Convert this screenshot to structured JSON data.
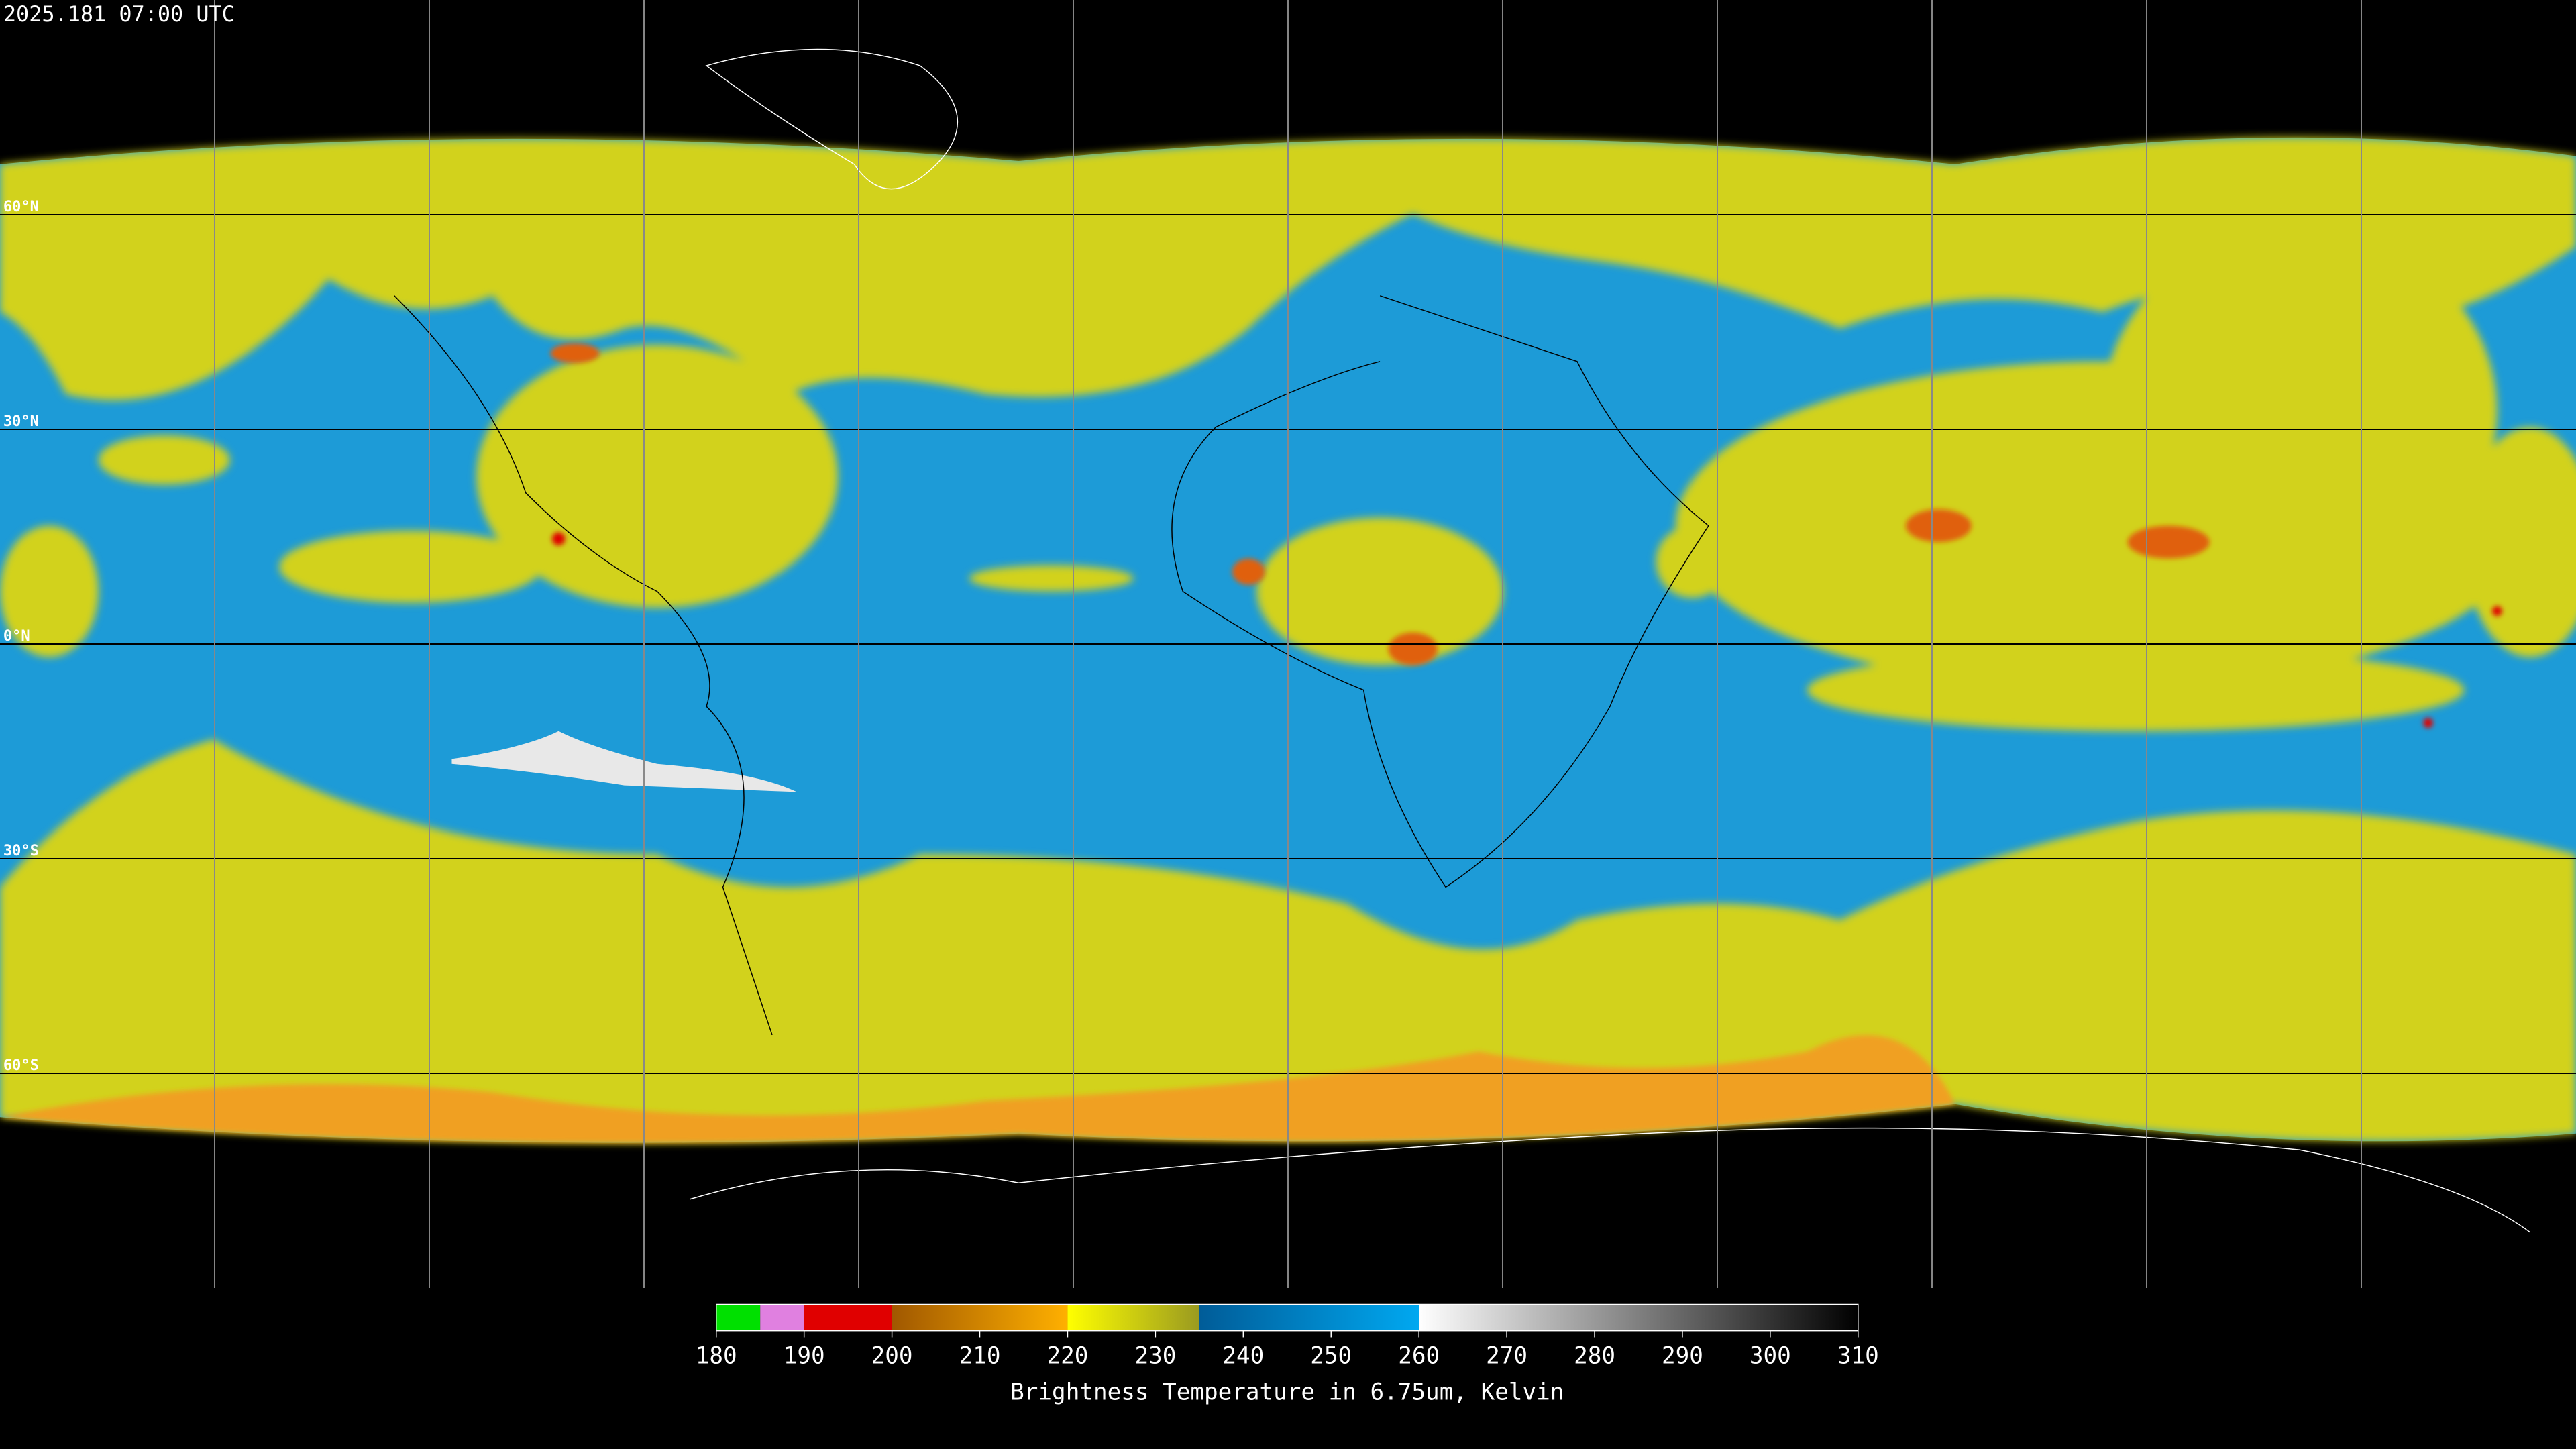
{
  "header": {
    "timestamp": "2025.181 07:00 UTC"
  },
  "map": {
    "latitude_labels": [
      "60°N",
      "30°N",
      "0°N",
      "30°S",
      "60°S"
    ],
    "colorbar": {
      "range": [
        180,
        310
      ],
      "ticks": [
        180,
        190,
        200,
        210,
        220,
        230,
        240,
        250,
        260,
        270,
        280,
        290,
        300,
        310
      ],
      "label": "Brightness Temperature in 6.75um, Kelvin",
      "segments": [
        {
          "from": 180,
          "to": 185,
          "colors": [
            "#00e000",
            "#00e000"
          ]
        },
        {
          "from": 185,
          "to": 190,
          "colors": [
            "#e080e0",
            "#e080e0"
          ]
        },
        {
          "from": 190,
          "to": 200,
          "colors": [
            "#e00000",
            "#e00000"
          ]
        },
        {
          "from": 200,
          "to": 220,
          "colors": [
            "#a05800",
            "#ffb000"
          ]
        },
        {
          "from": 220,
          "to": 235,
          "colors": [
            "#ffff00",
            "#9a9a20"
          ]
        },
        {
          "from": 235,
          "to": 260,
          "colors": [
            "#005c98",
            "#00a8f0"
          ]
        },
        {
          "from": 260,
          "to": 310,
          "colors": [
            "#ffffff",
            "#000000"
          ]
        }
      ]
    }
  }
}
